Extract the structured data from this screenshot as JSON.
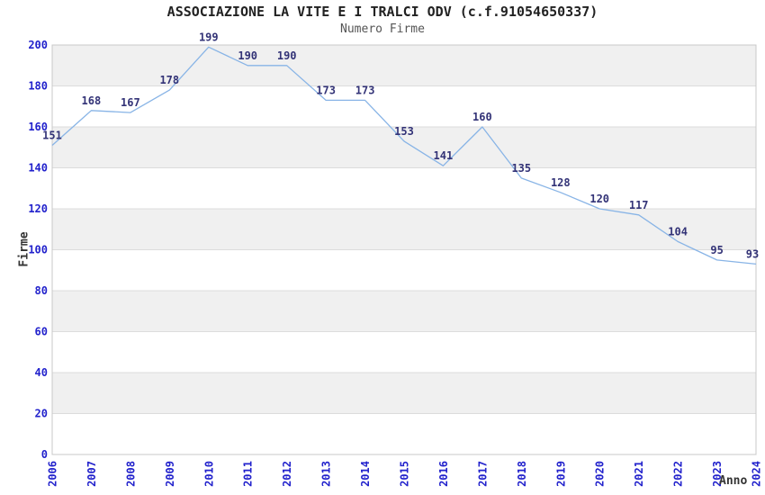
{
  "chart_data": {
    "type": "line",
    "title": "ASSOCIAZIONE LA VITE E I TRALCI ODV (c.f.91054650337)",
    "subtitle": "Numero Firme",
    "xlabel": "Anno",
    "ylabel": "Firme",
    "x": [
      2006,
      2007,
      2008,
      2009,
      2010,
      2011,
      2012,
      2013,
      2014,
      2015,
      2016,
      2017,
      2018,
      2019,
      2020,
      2021,
      2022,
      2023,
      2024
    ],
    "series": [
      {
        "name": "Numero Firme",
        "values": [
          151,
          168,
          167,
          178,
          199,
          190,
          190,
          173,
          173,
          153,
          141,
          160,
          135,
          128,
          120,
          117,
          104,
          95,
          93
        ]
      }
    ],
    "ylim": [
      0,
      200
    ],
    "ytick_step": 20,
    "yticks": [
      0,
      20,
      40,
      60,
      80,
      100,
      120,
      140,
      160,
      180,
      200
    ],
    "grid": true,
    "legend": "none",
    "plot_background": "alternating-bands",
    "data_labels_visible": true,
    "colors": {
      "line": "#88b4e6",
      "tick_label": "#2222cc",
      "data_label": "#333377",
      "band": "#f0f0f0",
      "grid": "#dcdcdc",
      "plot_border": "#c8c8c8",
      "title": "#222222",
      "subtitle": "#555555",
      "axis_label": "#333333",
      "background": "#ffffff"
    }
  }
}
